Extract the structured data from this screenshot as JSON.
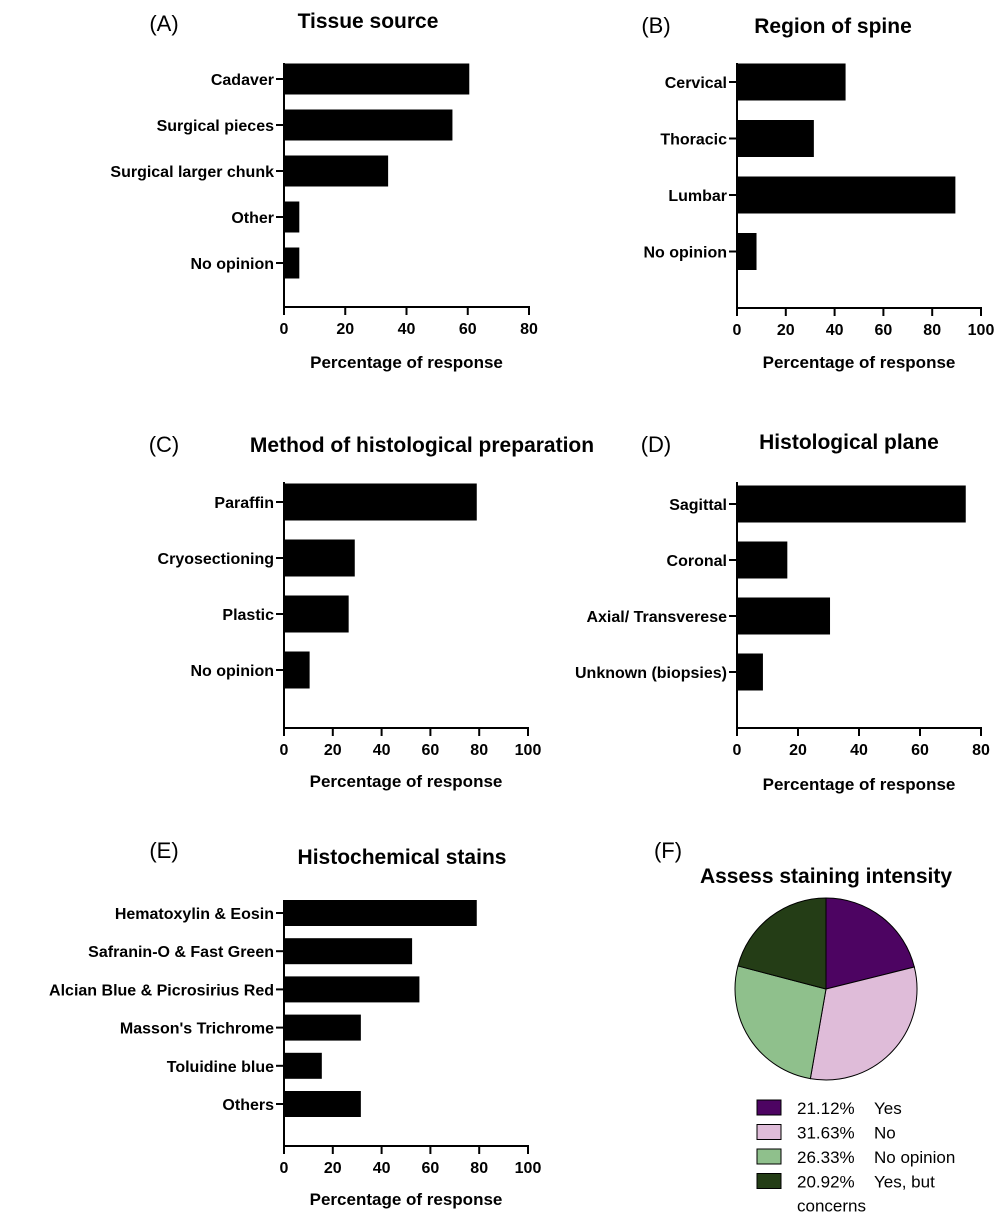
{
  "chart_data": [
    {
      "panel": "(A)",
      "type": "bar",
      "orientation": "horizontal",
      "title": "Tissue source",
      "xlabel": "Percentage of response",
      "categories": [
        "Cadaver",
        "Surgical pieces",
        "Surgical larger chunk",
        "Other",
        "No opinion"
      ],
      "values": [
        60.5,
        55,
        34,
        5,
        5
      ],
      "xlim": [
        0,
        80
      ],
      "xticks": [
        0,
        20,
        40,
        60,
        80
      ],
      "bar_color": "#000000"
    },
    {
      "panel": "(B)",
      "type": "bar",
      "orientation": "horizontal",
      "title": "Region of spine",
      "xlabel": "Percentage of response",
      "categories": [
        "Cervical",
        "Thoracic",
        "Lumbar",
        "No opinion"
      ],
      "values": [
        44.5,
        31.5,
        89.5,
        8
      ],
      "xlim": [
        0,
        100
      ],
      "xticks": [
        0,
        20,
        40,
        60,
        80,
        100
      ],
      "bar_color": "#000000"
    },
    {
      "panel": "(C)",
      "type": "bar",
      "orientation": "horizontal",
      "title": "Method of histological preparation",
      "xlabel": "Percentage of response",
      "categories": [
        "Paraffin",
        "Cryosectioning",
        "Plastic",
        "No opinion"
      ],
      "values": [
        79,
        29,
        26.5,
        10.5
      ],
      "xlim": [
        0,
        100
      ],
      "xticks": [
        0,
        20,
        40,
        60,
        80,
        100
      ],
      "bar_color": "#000000"
    },
    {
      "panel": "(D)",
      "type": "bar",
      "orientation": "horizontal",
      "title": "Histological plane",
      "xlabel": "Percentage of response",
      "categories": [
        "Sagittal",
        "Coronal",
        "Axial/ Transverese",
        "Unknown (biopsies)"
      ],
      "values": [
        75,
        16.5,
        30.5,
        8.5
      ],
      "xlim": [
        0,
        80
      ],
      "xticks": [
        0,
        20,
        40,
        60,
        80
      ],
      "bar_color": "#000000"
    },
    {
      "panel": "(E)",
      "type": "bar",
      "orientation": "horizontal",
      "title": "Histochemical stains",
      "xlabel": "Percentage of response",
      "categories": [
        "Hematoxylin & Eosin",
        "Safranin-O & Fast Green",
        "Alcian Blue & Picrosirius Red",
        "Masson's Trichrome",
        "Toluidine blue",
        "Others"
      ],
      "values": [
        79,
        52.5,
        55.5,
        31.5,
        15.5,
        31.5
      ],
      "xlim": [
        0,
        100
      ],
      "xticks": [
        0,
        20,
        40,
        60,
        80,
        100
      ],
      "bar_color": "#000000"
    },
    {
      "panel": "(F)",
      "type": "pie",
      "title": "Assess staining intensity",
      "slices": [
        {
          "label": "Yes",
          "percent_label": "21.12%",
          "value": 21.12,
          "color": "#4d0462"
        },
        {
          "label": "No",
          "percent_label": "31.63%",
          "value": 31.63,
          "color": "#dfbcd9"
        },
        {
          "label": "No opinion",
          "percent_label": "26.33%",
          "value": 26.33,
          "color": "#8fc08c"
        },
        {
          "label": "Yes, but concerns",
          "percent_label": "20.92%",
          "value": 20.92,
          "color": "#243d16"
        }
      ],
      "legend_placement": "bottom"
    }
  ]
}
